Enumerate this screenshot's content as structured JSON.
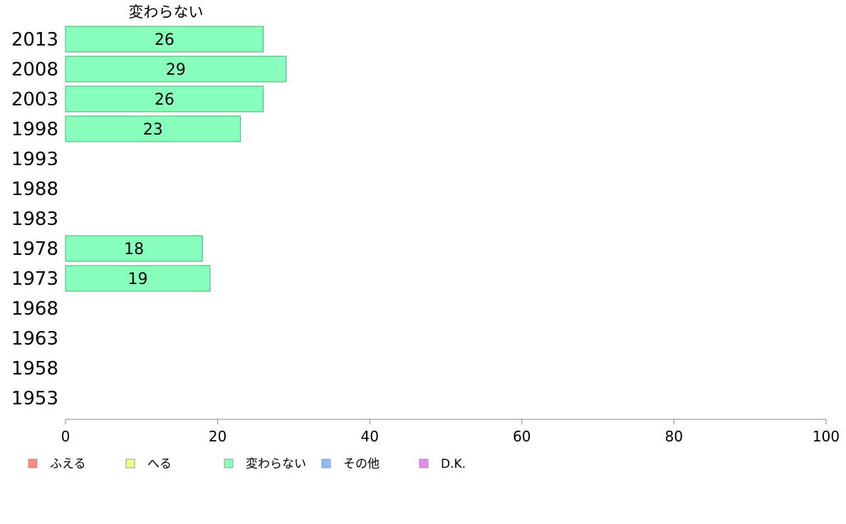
{
  "chart_data": {
    "type": "bar",
    "orientation": "horizontal",
    "title": "変わらない",
    "categories": [
      "2013",
      "2008",
      "2003",
      "1998",
      "1993",
      "1988",
      "1983",
      "1978",
      "1973",
      "1968",
      "1963",
      "1958",
      "1953"
    ],
    "series": [
      {
        "name": "変わらない",
        "color": "#88ffbb",
        "values": [
          26,
          29,
          26,
          23,
          null,
          null,
          null,
          18,
          19,
          null,
          null,
          null,
          null
        ],
        "labels": [
          "26",
          "29",
          "26",
          "23",
          "",
          "",
          "",
          "18",
          "19",
          "",
          "",
          "",
          ""
        ]
      }
    ],
    "xlim": [
      0,
      100
    ],
    "xticks": [
      "0",
      "20",
      "40",
      "60",
      "80",
      "100"
    ],
    "grid": false,
    "legend": {
      "position": "bottom",
      "items": [
        {
          "label": "ふえる",
          "color": "#ff8888"
        },
        {
          "label": "へる",
          "color": "#eeff88"
        },
        {
          "label": "変わらない",
          "color": "#88ffbb"
        },
        {
          "label": "その他",
          "color": "#88bbff"
        },
        {
          "label": "D.K.",
          "color": "#ee88ee"
        }
      ]
    }
  }
}
